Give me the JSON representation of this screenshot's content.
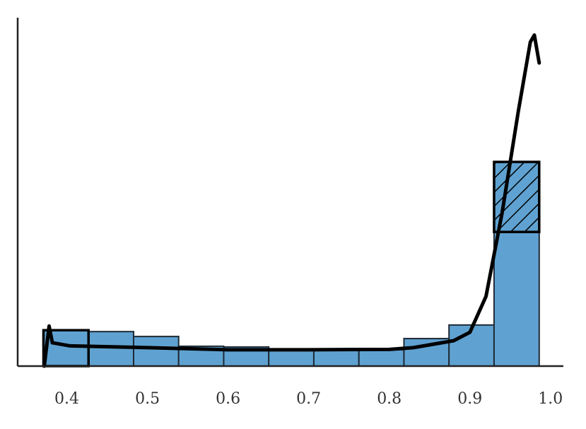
{
  "chart_data": {
    "type": "histogram",
    "bins": [
      0.371,
      0.4269,
      0.4828,
      0.5387,
      0.5946,
      0.6505,
      0.7064,
      0.7623,
      0.8182,
      0.8741,
      0.93,
      0.986
    ],
    "values": [
      1.03,
      0.99,
      0.85,
      0.57,
      0.55,
      0.47,
      0.47,
      0.47,
      0.79,
      1.18,
      5.86
    ],
    "color": "#5fa2d1",
    "curve": {
      "color": "#000000",
      "x": [
        0.372,
        0.378,
        0.382,
        0.404,
        0.5,
        0.6,
        0.7,
        0.8,
        0.83,
        0.88,
        0.9,
        0.92,
        0.94,
        0.96,
        0.975,
        0.98,
        0.986
      ],
      "y": [
        0,
        1.15,
        0.67,
        0.58,
        0.53,
        0.47,
        0.47,
        0.48,
        0.53,
        0.73,
        0.97,
        2.0,
        4.4,
        7.3,
        9.3,
        9.5,
        8.7
      ]
    },
    "outlines": [
      {
        "x": [
          0.93,
          0.986
        ],
        "y": [
          3.85,
          5.86
        ],
        "hatch": true
      },
      {
        "x": [
          0.371,
          0.4269
        ],
        "y": [
          0,
          1.03
        ],
        "hatch": false
      }
    ],
    "xlim": [
      0.339,
      1.016
    ],
    "ylim": [
      0,
      10
    ],
    "xticks": [
      0.4,
      0.5,
      0.6,
      0.7,
      0.8,
      0.9,
      {
        "value": 1.0,
        "label": "1.0"
      }
    ]
  }
}
